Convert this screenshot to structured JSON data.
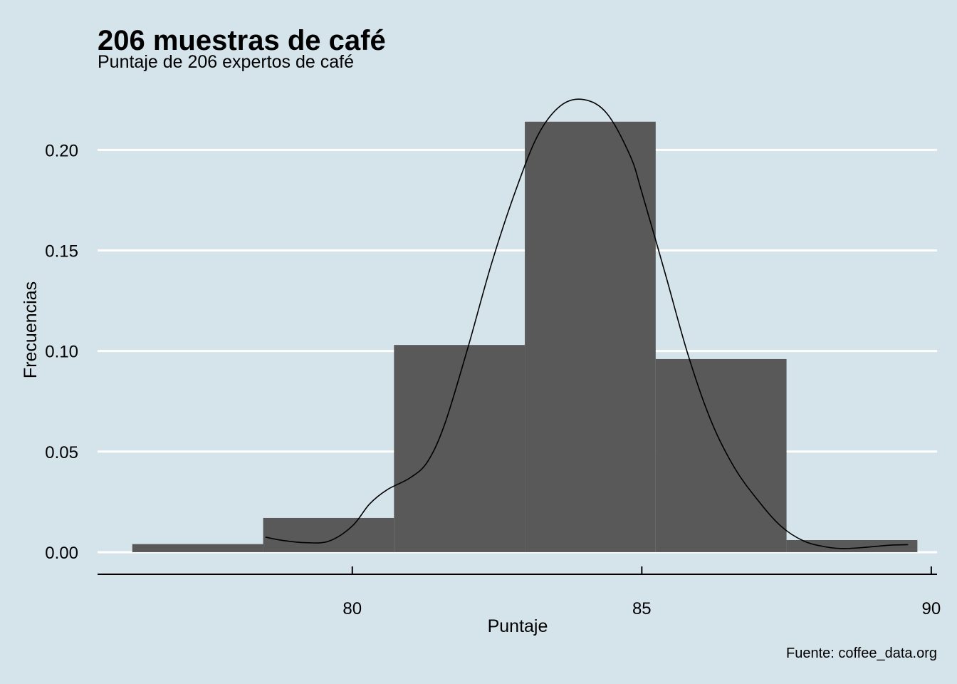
{
  "chart_data": {
    "type": "bar",
    "subtype": "histogram with density curve",
    "title": "206 muestras de café",
    "subtitle": "Puntaje de 206 expertos de café",
    "xlabel": "Puntaje",
    "ylabel": "Frecuencias",
    "caption": "Fuente: coffee_data.org",
    "xlim": [
      75.6,
      90.1
    ],
    "ylim": [
      -0.011,
      0.232
    ],
    "x_ticks": [
      80,
      85,
      90
    ],
    "x_tick_labels": [
      "80",
      "85",
      "90"
    ],
    "y_ticks": [
      0.0,
      0.05,
      0.1,
      0.15,
      0.2
    ],
    "y_tick_labels": [
      "0.00",
      "0.05",
      "0.10",
      "0.15",
      "0.20"
    ],
    "grid": "horizontal",
    "bins": [
      {
        "x0": 76.2,
        "x1": 78.46,
        "value": 0.004
      },
      {
        "x0": 78.46,
        "x1": 80.72,
        "value": 0.017
      },
      {
        "x0": 80.72,
        "x1": 82.98,
        "value": 0.103
      },
      {
        "x0": 82.98,
        "x1": 85.24,
        "value": 0.214
      },
      {
        "x0": 85.24,
        "x1": 87.5,
        "value": 0.096
      },
      {
        "x0": 87.5,
        "x1": 89.76,
        "value": 0.006
      }
    ],
    "density": {
      "x": [
        78.5,
        78.8,
        79.2,
        79.6,
        80.0,
        80.3,
        80.6,
        81.0,
        81.3,
        81.6,
        82.0,
        82.4,
        82.8,
        83.2,
        83.6,
        84.0,
        84.4,
        84.8,
        85.0,
        85.4,
        85.8,
        86.2,
        86.6,
        87.0,
        87.4,
        87.8,
        88.2,
        88.5,
        88.9,
        89.3,
        89.6
      ],
      "y": [
        0.0075,
        0.0058,
        0.0047,
        0.0055,
        0.013,
        0.024,
        0.031,
        0.037,
        0.045,
        0.064,
        0.102,
        0.143,
        0.178,
        0.207,
        0.222,
        0.225,
        0.218,
        0.197,
        0.179,
        0.139,
        0.098,
        0.065,
        0.042,
        0.026,
        0.013,
        0.0055,
        0.0025,
        0.0018,
        0.0025,
        0.0035,
        0.0037
      ]
    },
    "colors": {
      "background": "#d5e4eb",
      "bars": "#595959",
      "grid": "#ffffff",
      "curve": "#000000"
    }
  }
}
